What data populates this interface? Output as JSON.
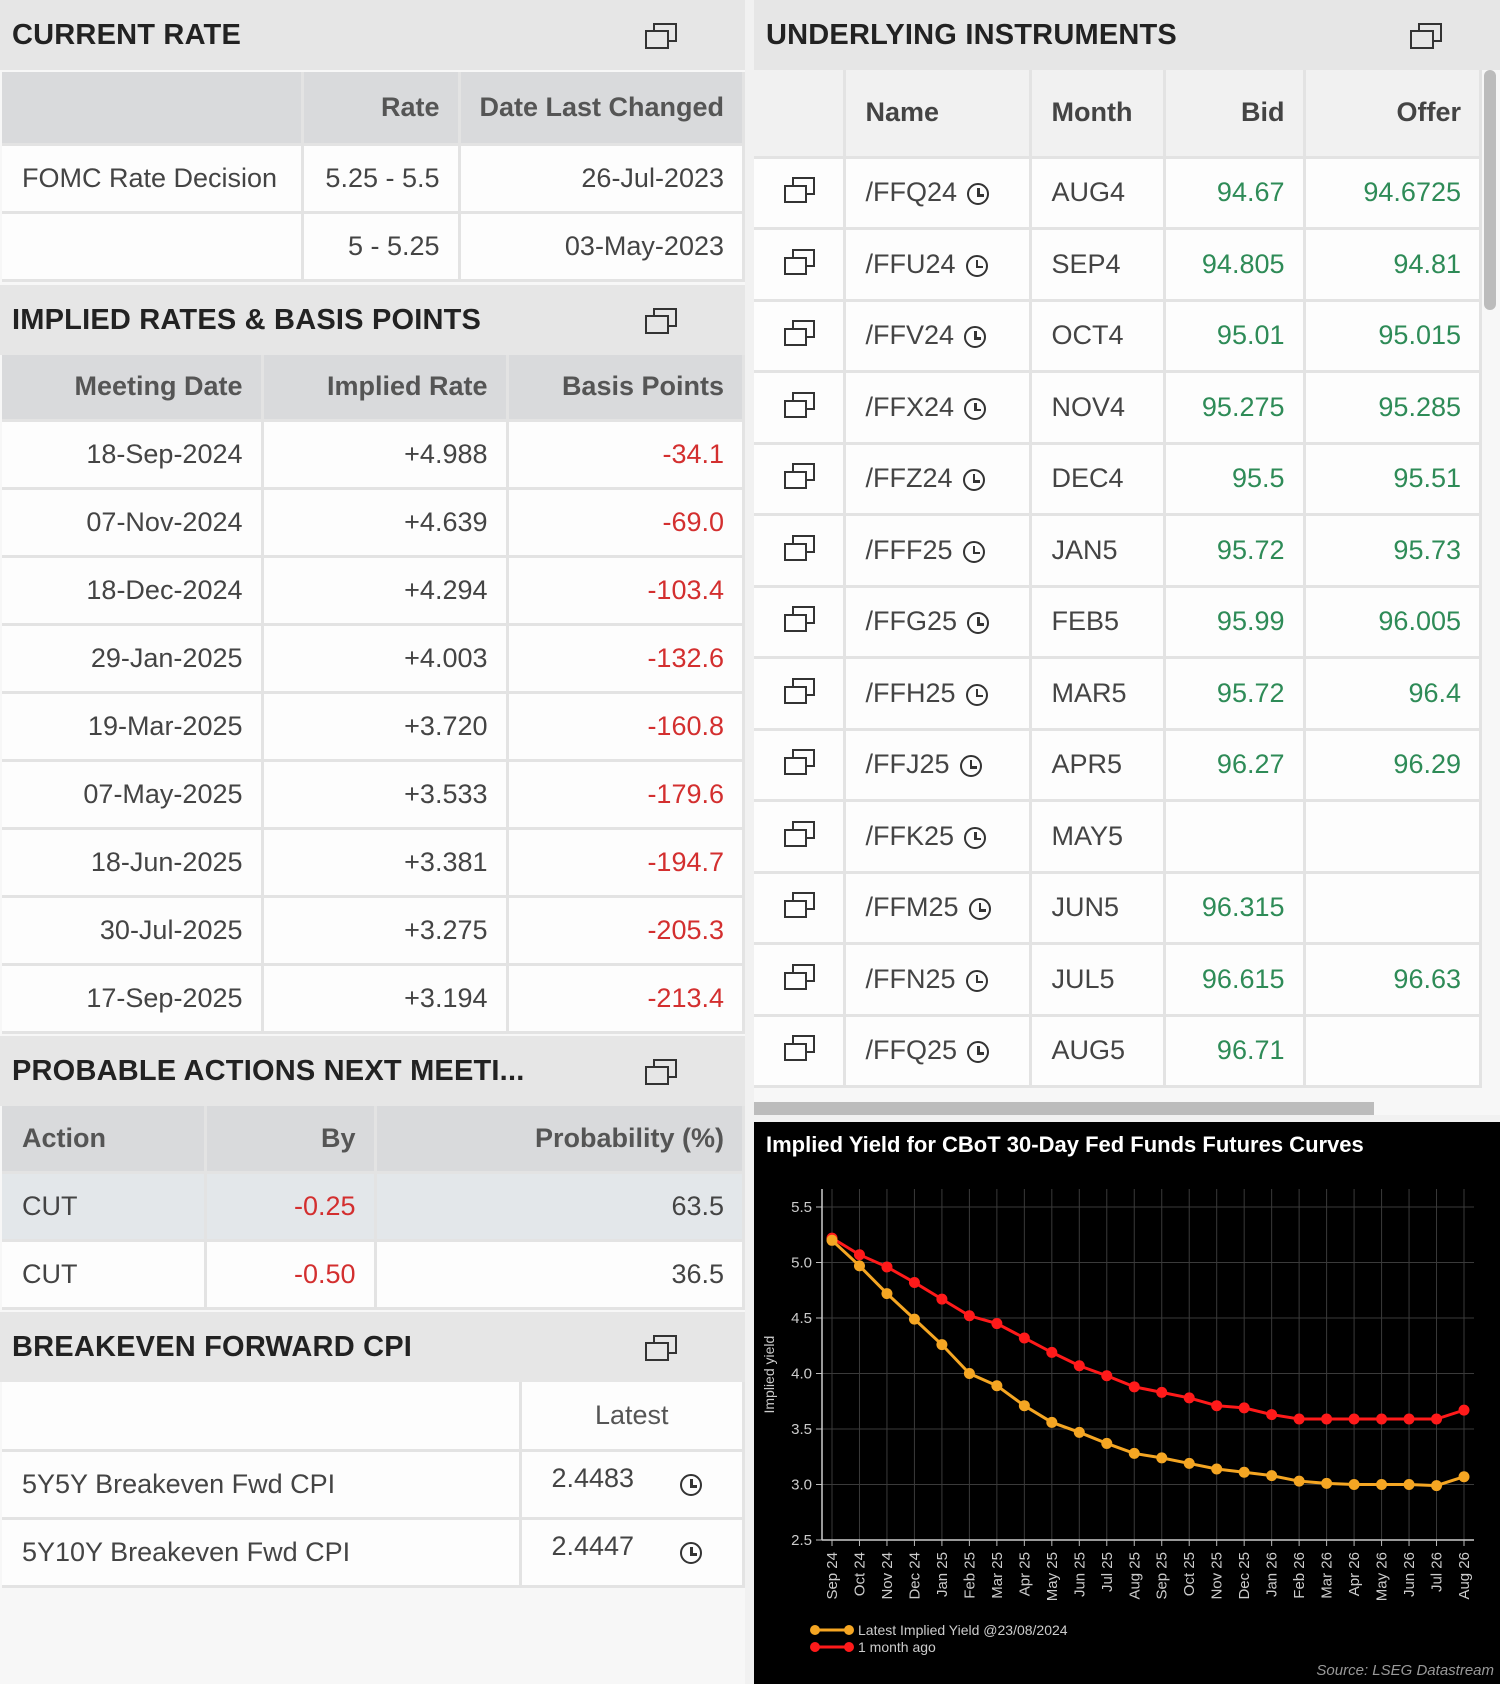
{
  "current_rate": {
    "title": "CURRENT RATE",
    "headers": [
      "",
      "Rate",
      "Date Last Changed"
    ],
    "rows": [
      {
        "name": "FOMC Rate Decision",
        "rate": "5.25 - 5.5",
        "date": "26-Jul-2023"
      },
      {
        "name": "",
        "rate": "5 - 5.25",
        "date": "03-May-2023"
      }
    ]
  },
  "implied_rates": {
    "title": "IMPLIED RATES & BASIS POINTS",
    "headers": [
      "Meeting Date",
      "Implied Rate",
      "Basis Points"
    ],
    "rows": [
      {
        "date": "18-Sep-2024",
        "rate": "+4.988",
        "bp": "-34.1"
      },
      {
        "date": "07-Nov-2024",
        "rate": "+4.639",
        "bp": "-69.0"
      },
      {
        "date": "18-Dec-2024",
        "rate": "+4.294",
        "bp": "-103.4"
      },
      {
        "date": "29-Jan-2025",
        "rate": "+4.003",
        "bp": "-132.6"
      },
      {
        "date": "19-Mar-2025",
        "rate": "+3.720",
        "bp": "-160.8"
      },
      {
        "date": "07-May-2025",
        "rate": "+3.533",
        "bp": "-179.6"
      },
      {
        "date": "18-Jun-2025",
        "rate": "+3.381",
        "bp": "-194.7"
      },
      {
        "date": "30-Jul-2025",
        "rate": "+3.275",
        "bp": "-205.3"
      },
      {
        "date": "17-Sep-2025",
        "rate": "+3.194",
        "bp": "-213.4"
      }
    ]
  },
  "probable_actions": {
    "title": "PROBABLE ACTIONS NEXT MEETI...",
    "headers": [
      "Action",
      "By",
      "Probability (%)"
    ],
    "rows": [
      {
        "action": "CUT",
        "by": "-0.25",
        "prob": "63.5"
      },
      {
        "action": "CUT",
        "by": "-0.50",
        "prob": "36.5"
      }
    ]
  },
  "breakeven": {
    "title": "BREAKEVEN FORWARD CPI",
    "headers": [
      "",
      "Latest"
    ],
    "rows": [
      {
        "name": "5Y5Y Breakeven Fwd CPI",
        "latest": "2.4483"
      },
      {
        "name": "5Y10Y Breakeven Fwd CPI",
        "latest": "2.4447"
      }
    ]
  },
  "underlying": {
    "title": "UNDERLYING INSTRUMENTS",
    "headers": [
      "",
      "Name",
      "Month",
      "Bid",
      "Offer"
    ],
    "rows": [
      {
        "name": "/FFQ24",
        "month": "AUG4",
        "bid": "94.67",
        "offer": "94.6725"
      },
      {
        "name": "/FFU24",
        "month": "SEP4",
        "bid": "94.805",
        "offer": "94.81"
      },
      {
        "name": "/FFV24",
        "month": "OCT4",
        "bid": "95.01",
        "offer": "95.015"
      },
      {
        "name": "/FFX24",
        "month": "NOV4",
        "bid": "95.275",
        "offer": "95.285"
      },
      {
        "name": "/FFZ24",
        "month": "DEC4",
        "bid": "95.5",
        "offer": "95.51"
      },
      {
        "name": "/FFF25",
        "month": "JAN5",
        "bid": "95.72",
        "offer": "95.73"
      },
      {
        "name": "/FFG25",
        "month": "FEB5",
        "bid": "95.99",
        "offer": "96.005"
      },
      {
        "name": "/FFH25",
        "month": "MAR5",
        "bid": "95.72",
        "offer": "96.4"
      },
      {
        "name": "/FFJ25",
        "month": "APR5",
        "bid": "96.27",
        "offer": "96.29"
      },
      {
        "name": "/FFK25",
        "month": "MAY5",
        "bid": "",
        "offer": ""
      },
      {
        "name": "/FFM25",
        "month": "JUN5",
        "bid": "96.315",
        "offer": ""
      },
      {
        "name": "/FFN25",
        "month": "JUL5",
        "bid": "96.615",
        "offer": "96.63"
      },
      {
        "name": "/FFQ25",
        "month": "AUG5",
        "bid": "96.71",
        "offer": ""
      }
    ]
  },
  "chart_data": {
    "type": "line",
    "title": "Implied Yield for CBoT 30-Day Fed Funds Futures Curves",
    "ylabel": "Implied yield",
    "xlabel": "",
    "source": "Source: LSEG Datastream",
    "ylim": [
      2.5,
      5.5
    ],
    "yticks": [
      "5.5",
      "5.0",
      "4.5",
      "4.0",
      "3.5",
      "3.0",
      "2.5"
    ],
    "categories": [
      "Sep 24",
      "Oct 24",
      "Nov 24",
      "Dec 24",
      "Jan 25",
      "Feb 25",
      "Mar 25",
      "Apr 25",
      "May 25",
      "Jun 25",
      "Jul 25",
      "Aug 25",
      "Sep 25",
      "Oct 25",
      "Nov 25",
      "Dec 25",
      "Jan 26",
      "Feb 26",
      "Mar 26",
      "Apr 26",
      "May 26",
      "Jun 26",
      "Jul 26",
      "Aug 26"
    ],
    "series": [
      {
        "name": "Latest Implied Yield @23/08/2024",
        "color": "#f5a623",
        "values": [
          5.2,
          4.97,
          4.72,
          4.49,
          4.26,
          4.0,
          3.89,
          3.71,
          3.56,
          3.47,
          3.37,
          3.28,
          3.24,
          3.19,
          3.14,
          3.11,
          3.08,
          3.03,
          3.01,
          3.0,
          3.0,
          3.0,
          2.99,
          3.07
        ]
      },
      {
        "name": "1 month ago",
        "color": "#ff1a1a",
        "values": [
          5.22,
          5.07,
          4.96,
          4.82,
          4.67,
          4.52,
          4.45,
          4.32,
          4.19,
          4.07,
          3.98,
          3.88,
          3.83,
          3.78,
          3.71,
          3.69,
          3.63,
          3.59,
          3.59,
          3.59,
          3.59,
          3.59,
          3.59,
          3.67
        ]
      }
    ]
  }
}
